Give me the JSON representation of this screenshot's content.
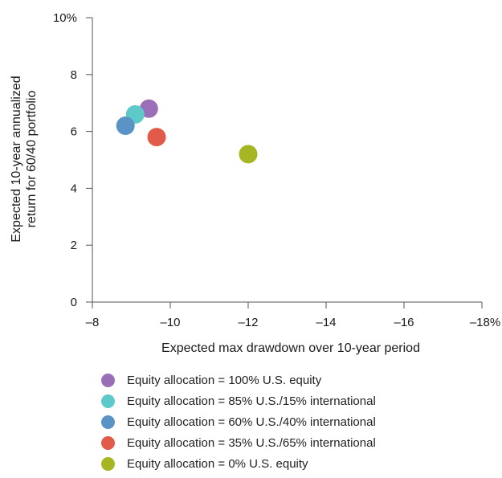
{
  "chart_data": {
    "type": "scatter",
    "xlabel": "Expected max drawdown over 10-year period",
    "ylabel_lines": [
      "Expected 10-year annualized",
      "return for 60/40 portfolio"
    ],
    "xlim": [
      -8,
      -18
    ],
    "ylim": [
      0,
      10
    ],
    "x_ticks": [
      -8,
      -10,
      -12,
      -14,
      -16,
      -18
    ],
    "x_tick_labels": [
      "–8",
      "–10",
      "–12",
      "–14",
      "–16",
      "–18%"
    ],
    "y_ticks": [
      0,
      2,
      4,
      6,
      8,
      10
    ],
    "y_tick_labels": [
      "0",
      "2",
      "4",
      "6",
      "8",
      "10%"
    ],
    "grid": false,
    "legend_placement": "bottom",
    "series": [
      {
        "name": "Equity allocation = 100% U.S. equity",
        "color": "#9a6fb8",
        "x": -9.45,
        "y": 6.8
      },
      {
        "name": "Equity allocation = 85% U.S./15% international",
        "color": "#5dc9c9",
        "x": -9.1,
        "y": 6.6
      },
      {
        "name": "Equity allocation = 60% U.S./40% international",
        "color": "#5b93c6",
        "x": -8.85,
        "y": 6.2
      },
      {
        "name": "Equity allocation = 35% U.S./65% international",
        "color": "#e25a49",
        "x": -9.65,
        "y": 5.8
      },
      {
        "name": "Equity allocation = 0% U.S. equity",
        "color": "#a6b522",
        "x": -12.0,
        "y": 5.2
      }
    ]
  }
}
